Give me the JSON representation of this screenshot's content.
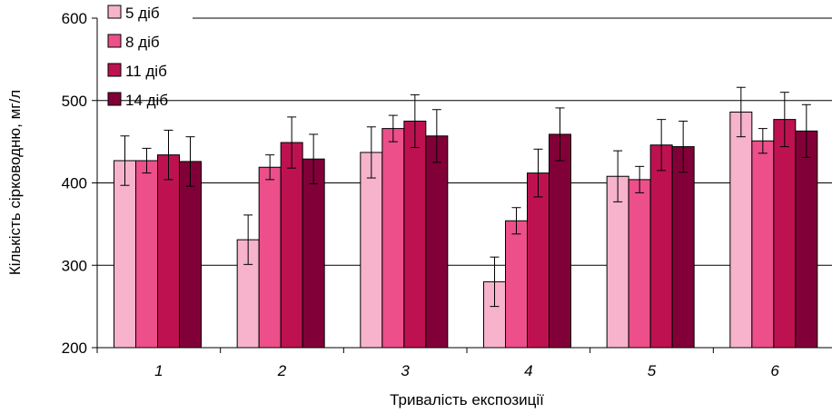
{
  "chart_data": {
    "type": "bar",
    "title": "",
    "xlabel": "Тривалість експозиції",
    "ylabel": "Кількість сірководню, мг/л",
    "ylim": [
      200,
      600
    ],
    "yticks": [
      200,
      300,
      400,
      500,
      600
    ],
    "grid": true,
    "legend_position": "top-left",
    "categories": [
      "1",
      "2",
      "3",
      "4",
      "5",
      "6"
    ],
    "series": [
      {
        "name": "5 діб",
        "color": "#F6B3CB",
        "values": [
          427,
          331,
          437,
          280,
          408,
          486
        ],
        "errors": [
          30,
          30,
          31,
          30,
          31,
          30
        ]
      },
      {
        "name": "8 діб",
        "color": "#EC4F8A",
        "values": [
          427,
          419,
          466,
          354,
          404,
          451
        ],
        "errors": [
          15,
          15,
          16,
          16,
          16,
          15
        ]
      },
      {
        "name": "11 діб",
        "color": "#BE1250",
        "values": [
          434,
          449,
          475,
          412,
          446,
          477
        ],
        "errors": [
          30,
          31,
          32,
          29,
          31,
          33
        ]
      },
      {
        "name": "14 діб",
        "color": "#820038",
        "values": [
          426,
          429,
          457,
          459,
          444,
          463
        ],
        "errors": [
          30,
          30,
          32,
          32,
          31,
          32
        ]
      }
    ]
  }
}
